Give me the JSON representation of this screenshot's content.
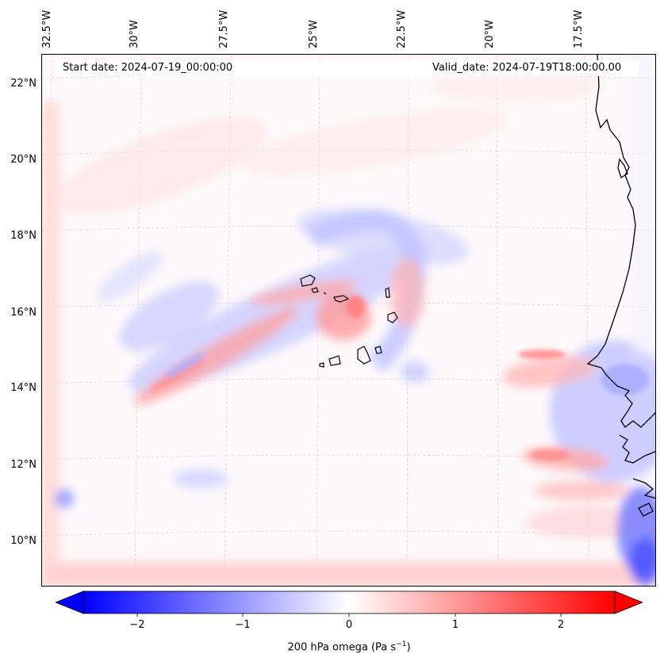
{
  "map": {
    "start_date_text": "Start date: 2024-07-19_00:00:00",
    "valid_date_text": "Valid_date: 2024-07-19T18:00:00.00",
    "lon_ticks": [
      "32.5°W",
      "30°W",
      "27.5°W",
      "25°W",
      "22.5°W",
      "20°W",
      "17.5°W"
    ],
    "lat_ticks": [
      "22°N",
      "20°N",
      "18°N",
      "16°N",
      "14°N",
      "12°N",
      "10°N"
    ],
    "extent": {
      "lon_min": -33,
      "lon_max": -16,
      "lat_min": 9,
      "lat_max": 22.7
    },
    "field": "200 hPa vertical velocity (omega)",
    "features": [
      "Cape Verde islands",
      "West African coastline (Senegal, Gambia, Guinea-Bissau)"
    ]
  },
  "colorbar": {
    "label_prefix": "200 hPa omega (Pa s",
    "label_exp": "−1",
    "label_suffix": ")",
    "ticks": [
      "−2",
      "−1",
      "0",
      "1",
      "2"
    ],
    "range": [
      -2.5,
      2.5
    ],
    "colormap": "bwr",
    "extend": "both",
    "colors": {
      "negative": "#0000ff",
      "zero": "#ffffff",
      "positive": "#ff0000"
    }
  }
}
